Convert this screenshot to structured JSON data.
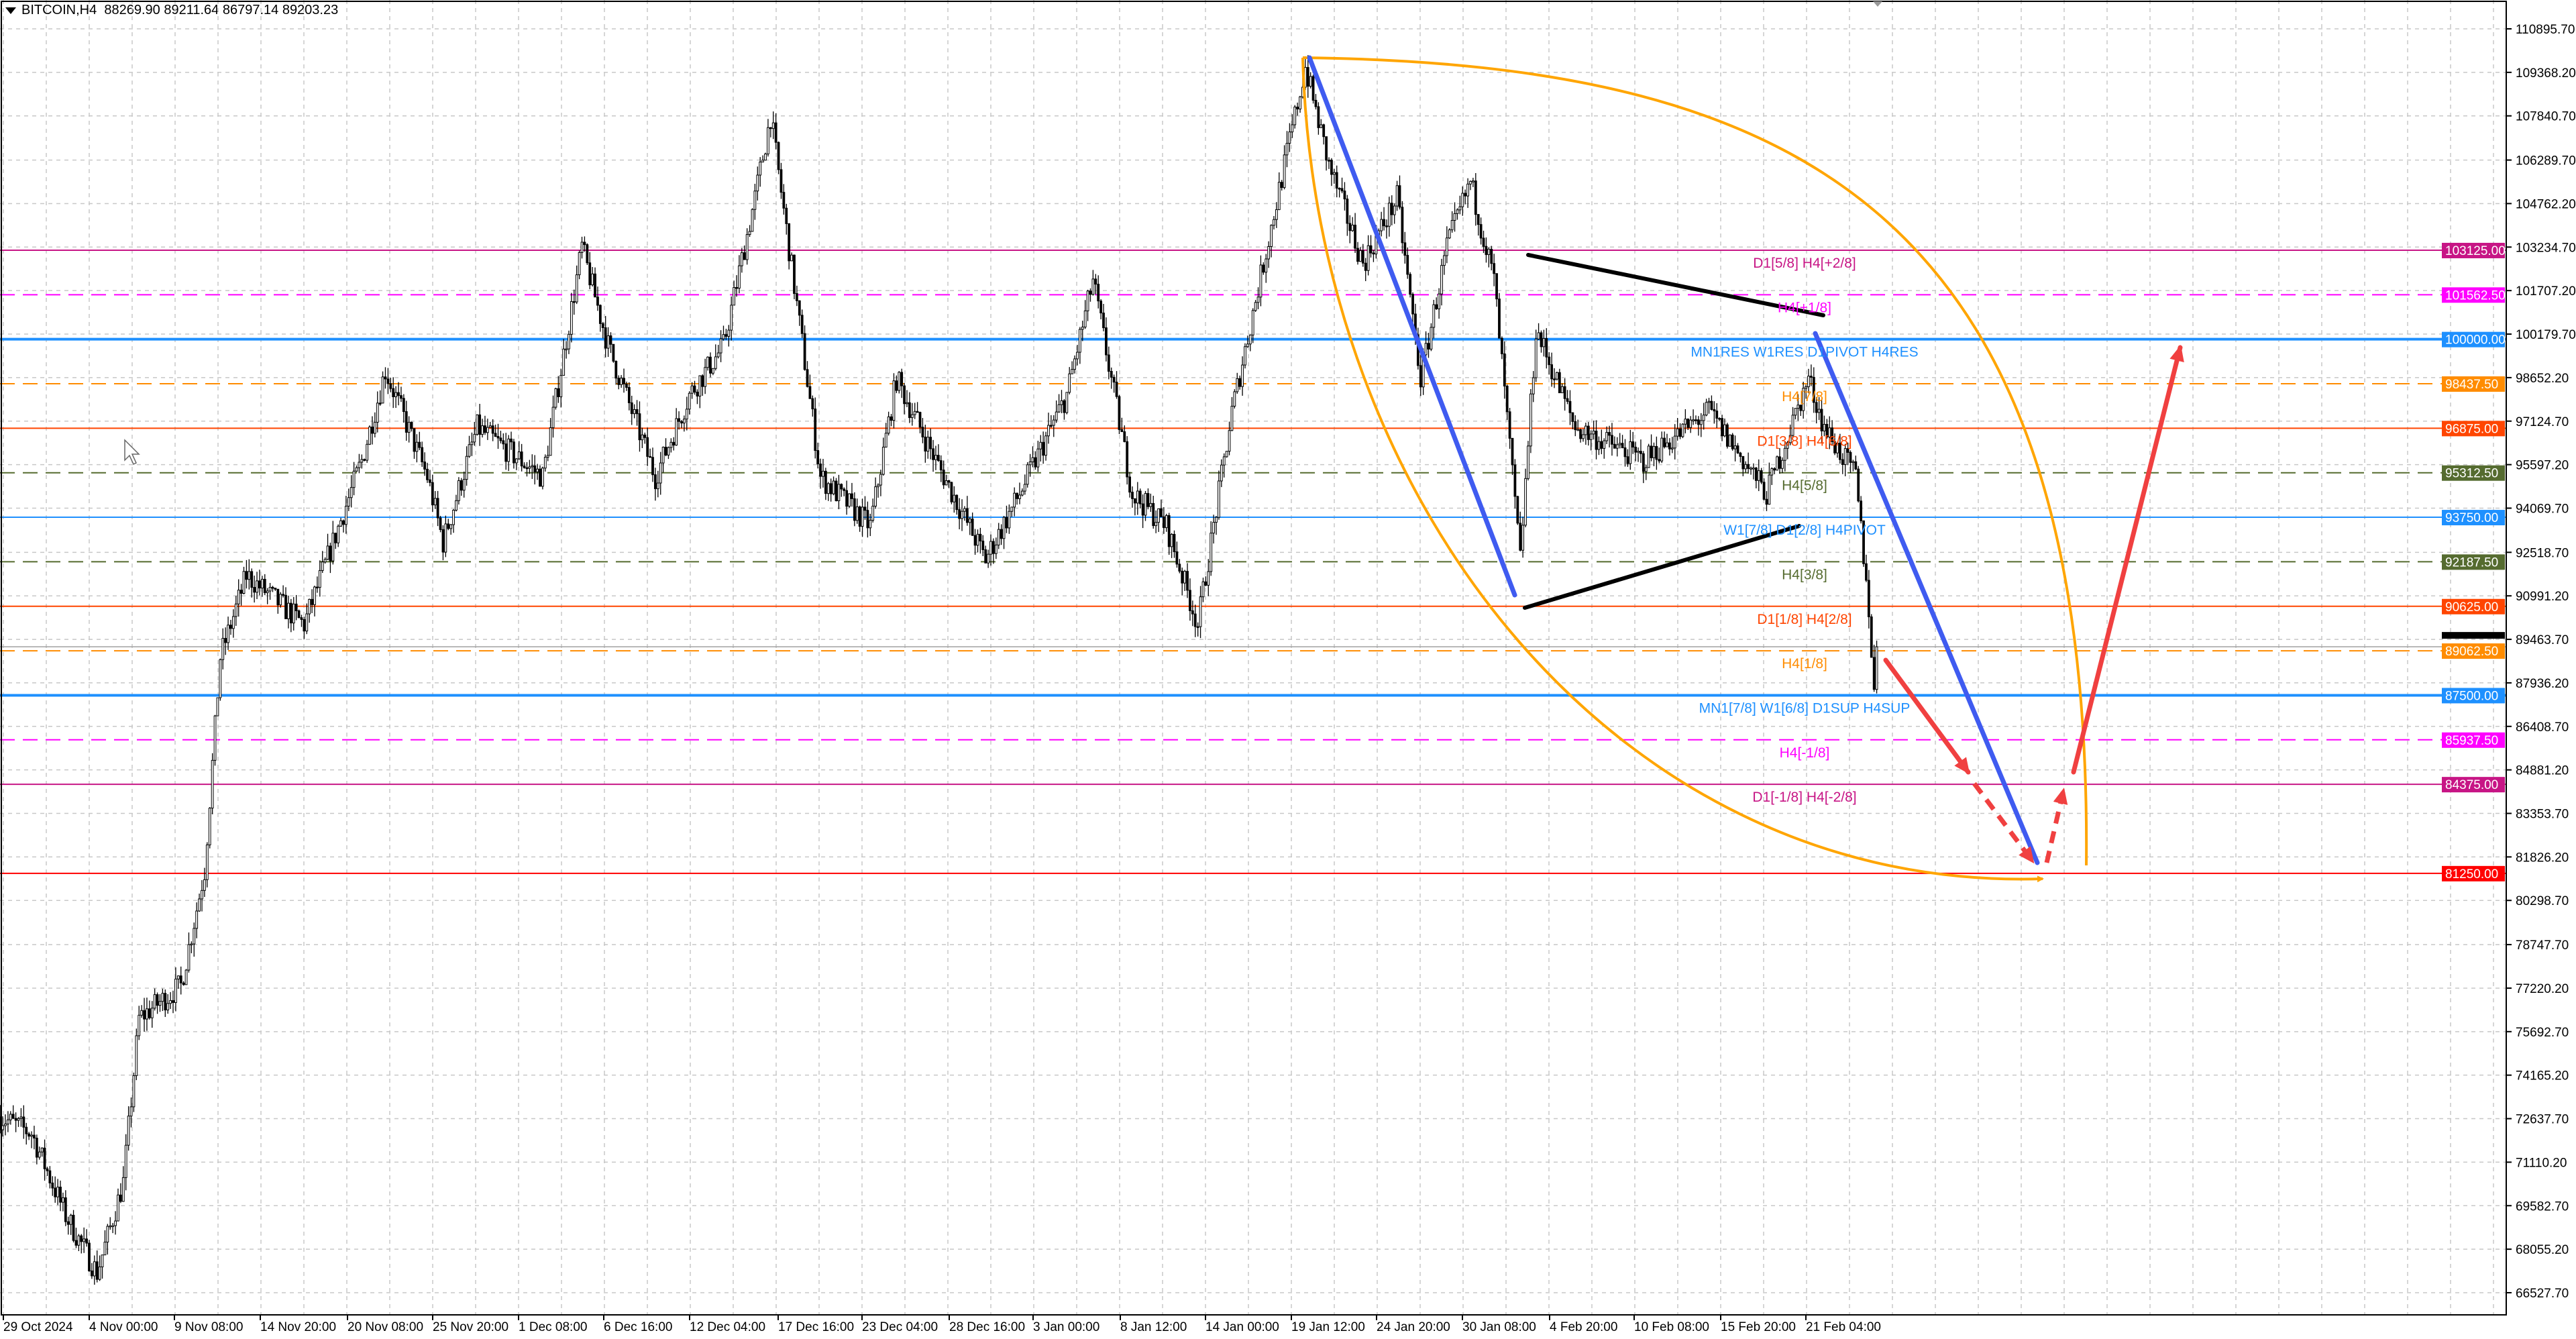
{
  "header": {
    "symbol": "BITCOIN,H4",
    "ohlc": "88269.90 89211.64 86797.14 89203.23"
  },
  "chart_data": {
    "type": "candlestick",
    "symbol": "BITCOIN",
    "timeframe": "H4",
    "last_price": "89203.23",
    "ylim": [
      66000,
      111700
    ],
    "grid": true,
    "y_ticks": [
      "110895.70",
      "109368.20",
      "107840.70",
      "106289.70",
      "104762.20",
      "103234.70",
      "101707.20",
      "100179.70",
      "98652.20",
      "97124.70",
      "95597.20",
      "94069.70",
      "92518.70",
      "90991.20",
      "89463.70",
      "87936.20",
      "86408.70",
      "84881.20",
      "83353.70",
      "81826.20",
      "80298.70",
      "78747.70",
      "77220.20",
      "75692.70",
      "74165.20",
      "72637.70",
      "71110.20",
      "69582.70",
      "68055.20",
      "66527.70"
    ],
    "x_ticks": [
      "29 Oct 2024",
      "4 Nov 00:00",
      "9 Nov 08:00",
      "14 Nov 20:00",
      "20 Nov 08:00",
      "25 Nov 20:00",
      "1 Dec 08:00",
      "6 Dec 16:00",
      "12 Dec 04:00",
      "17 Dec 16:00",
      "23 Dec 04:00",
      "28 Dec 16:00",
      "3 Jan 00:00",
      "8 Jan 12:00",
      "14 Jan 00:00",
      "19 Jan 12:00",
      "24 Jan 20:00",
      "30 Jan 08:00",
      "4 Feb 20:00",
      "10 Feb 08:00",
      "15 Feb 20:00",
      "21 Feb 04:00"
    ],
    "price_path": [
      [
        "2024-10-29T08:00",
        72700
      ],
      [
        "2024-10-31T08:00",
        72125
      ],
      [
        "2024-11-02T12:00",
        69245
      ],
      [
        "2024-11-04T12:00",
        67230
      ],
      [
        "2024-11-06T04:00",
        70400
      ],
      [
        "2024-11-07T04:00",
        76160
      ],
      [
        "2024-11-09T20:00",
        77310
      ],
      [
        "2024-11-11T08:00",
        81340
      ],
      [
        "2024-11-12T08:00",
        88830
      ],
      [
        "2024-11-14T00:00",
        91710
      ],
      [
        "2024-11-17T16:00",
        89980
      ],
      [
        "2024-11-21T08:00",
        95740
      ],
      [
        "2024-11-22T20:00",
        98900
      ],
      [
        "2024-11-25T12:00",
        95170
      ],
      [
        "2024-11-26T12:00",
        92870
      ],
      [
        "2024-11-28T16:00",
        96900
      ],
      [
        "2024-12-02T20:00",
        95170
      ],
      [
        "2024-12-05T08:00",
        103230
      ],
      [
        "2024-12-07T00:00",
        99770
      ],
      [
        "2024-12-10T00:00",
        95170
      ],
      [
        "2024-12-12T04:00",
        98050
      ],
      [
        "2024-12-14T08:00",
        99770
      ],
      [
        "2024-12-16T08:00",
        104960
      ],
      [
        "2024-12-17T08:00",
        107840
      ],
      [
        "2024-12-19T12:00",
        99200
      ],
      [
        "2024-12-20T12:00",
        95170
      ],
      [
        "2024-12-23T16:00",
        93440
      ],
      [
        "2024-12-25T08:00",
        98620
      ],
      [
        "2024-12-27T20:00",
        95740
      ],
      [
        "2024-12-31T00:00",
        92280
      ],
      [
        "2025-01-02T04:00",
        94580
      ],
      [
        "2025-01-05T04:00",
        98050
      ],
      [
        "2025-01-06T20:00",
        102080
      ],
      [
        "2025-01-09T08:00",
        94580
      ],
      [
        "2025-01-11T12:00",
        93440
      ],
      [
        "2025-01-13T12:00",
        89980
      ],
      [
        "2025-01-15T16:00",
        97470
      ],
      [
        "2025-01-18T08:00",
        104380
      ],
      [
        "2025-01-20T08:00",
        109560
      ],
      [
        "2025-01-21T20:00",
        106100
      ],
      [
        "2025-01-24T00:00",
        102650
      ],
      [
        "2025-01-26T04:00",
        104960
      ],
      [
        "2025-01-27T16:00",
        98620
      ],
      [
        "2025-01-29T08:00",
        103230
      ],
      [
        "2025-01-30T20:00",
        105530
      ],
      [
        "2025-02-01T08:00",
        102080
      ],
      [
        "2025-02-03T00:00",
        92280
      ],
      [
        "2025-02-04T00:00",
        100350
      ],
      [
        "2025-02-06T12:00",
        96900
      ],
      [
        "2025-02-10T20:00",
        95740
      ],
      [
        "2025-02-15T00:00",
        97470
      ],
      [
        "2025-02-18T16:00",
        94580
      ],
      [
        "2025-02-21T08:00",
        98620
      ],
      [
        "2025-02-22T08:00",
        96900
      ],
      [
        "2025-02-24T08:00",
        95170
      ],
      [
        "2025-02-25T04:00",
        90560
      ],
      [
        "2025-02-25T12:00",
        87500
      ],
      [
        "2025-02-25T16:00",
        89203
      ]
    ],
    "levels": [
      {
        "price": 103125.0,
        "tag": "103125.00",
        "label": "D1[5/8] H4[+2/8]",
        "color": "#C71585",
        "style": "solid"
      },
      {
        "price": 101562.5,
        "tag": "101562.50",
        "label": "H4[+1/8]",
        "color": "#FF00FF",
        "style": "dashed"
      },
      {
        "price": 100000.0,
        "tag": "100000.00",
        "label": "MN1RES W1RES D1PIVOT H4RES",
        "color": "#1E90FF",
        "style": "solid"
      },
      {
        "price": 98437.5,
        "tag": "98437.50",
        "label": "H4[7/8]",
        "color": "#FF8C00",
        "style": "dashed"
      },
      {
        "price": 96875.0,
        "tag": "96875.00",
        "label": "D1[3/8] H4[6/8]",
        "color": "#FF4500",
        "style": "solid"
      },
      {
        "price": 95312.5,
        "tag": "95312.50",
        "label": "H4[5/8]",
        "color": "#556B2F",
        "style": "dashed"
      },
      {
        "price": 93750.0,
        "tag": "93750.00",
        "label": "W1[7/8] D1[2/8] H4PIVOT",
        "color": "#1E90FF",
        "style": "solid"
      },
      {
        "price": 92187.5,
        "tag": "92187.50",
        "label": "H4[3/8]",
        "color": "#556B2F",
        "style": "dashed"
      },
      {
        "price": 90625.0,
        "tag": "90625.00",
        "label": "D1[1/8] H4[2/8]",
        "color": "#FF4500",
        "style": "solid"
      },
      {
        "price": 89062.5,
        "tag": "89062.50",
        "label": "H4[1/8]",
        "color": "#FF8C00",
        "style": "dashed"
      },
      {
        "price": 87500.0,
        "tag": "87500.00",
        "label": "MN1[7/8] W1[6/8] D1SUP H4SUP",
        "color": "#1E90FF",
        "style": "solid"
      },
      {
        "price": 85937.5,
        "tag": "85937.50",
        "label": "H4[-1/8]",
        "color": "#FF00FF",
        "style": "dashed"
      },
      {
        "price": 84375.0,
        "tag": "84375.00",
        "label": "D1[-1/8] H4[-2/8]",
        "color": "#C71585",
        "style": "solid"
      },
      {
        "price": 81250.0,
        "tag": "81250.00",
        "label": "",
        "color": "#FF0000",
        "style": "solid"
      }
    ],
    "colors": {
      "trendline": "#3F5BF0",
      "arc": "#FFA500",
      "forecast": "#F04040",
      "triangle": "#000000",
      "bull": "#FFFFFF",
      "bear": "#000000"
    }
  }
}
